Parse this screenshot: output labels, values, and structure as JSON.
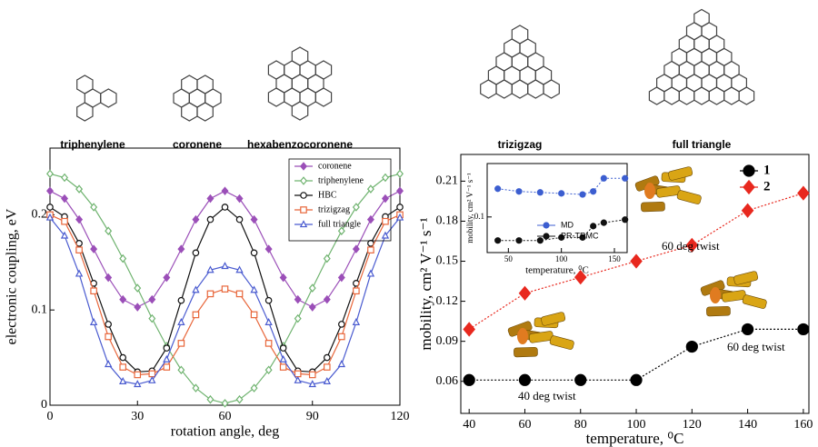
{
  "molecule_labels": [
    "triphenylene",
    "coronene",
    "hexabenzocoronene",
    "trizigzag",
    "full triangle"
  ],
  "chart_data": [
    {
      "type": "line",
      "xlabel": "rotation angle, deg",
      "ylabel": "electronic coupling, eV",
      "x": [
        0,
        5,
        10,
        15,
        20,
        25,
        30,
        35,
        40,
        45,
        50,
        55,
        60,
        65,
        70,
        75,
        80,
        85,
        90,
        95,
        100,
        105,
        110,
        115,
        120
      ],
      "xlim": [
        0,
        120
      ],
      "xticks": [
        0,
        30,
        60,
        90,
        120
      ],
      "ylim": [
        0,
        0.27
      ],
      "yticks": [
        0,
        0.1,
        0.2
      ],
      "legend": "upper right",
      "series": [
        {
          "name": "coronene",
          "color": "#9b4fb8",
          "marker": "diamond",
          "filled": true,
          "values": [
            0.225,
            0.217,
            0.195,
            0.164,
            0.134,
            0.111,
            0.103,
            0.111,
            0.134,
            0.164,
            0.195,
            0.217,
            0.225,
            0.217,
            0.195,
            0.164,
            0.134,
            0.111,
            0.103,
            0.111,
            0.134,
            0.164,
            0.195,
            0.217,
            0.225
          ]
        },
        {
          "name": "triphenylene",
          "color": "#6fb36f",
          "marker": "diamond",
          "filled": false,
          "values": [
            0.243,
            0.239,
            0.227,
            0.208,
            0.183,
            0.154,
            0.123,
            0.091,
            0.062,
            0.037,
            0.018,
            0.006,
            0.002,
            0.006,
            0.018,
            0.037,
            0.062,
            0.091,
            0.123,
            0.154,
            0.183,
            0.208,
            0.227,
            0.239,
            0.243
          ]
        },
        {
          "name": "HBC",
          "color": "#111111",
          "marker": "circle",
          "filled": false,
          "values": [
            0.208,
            0.198,
            0.17,
            0.128,
            0.085,
            0.05,
            0.035,
            0.036,
            0.06,
            0.11,
            0.16,
            0.195,
            0.208,
            0.195,
            0.16,
            0.11,
            0.06,
            0.036,
            0.035,
            0.05,
            0.085,
            0.128,
            0.17,
            0.198,
            0.208
          ]
        },
        {
          "name": "trizigzag",
          "color": "#e8663a",
          "marker": "square",
          "filled": false,
          "values": [
            0.2,
            0.193,
            0.163,
            0.12,
            0.072,
            0.04,
            0.032,
            0.033,
            0.04,
            0.065,
            0.095,
            0.117,
            0.122,
            0.117,
            0.095,
            0.065,
            0.04,
            0.033,
            0.032,
            0.04,
            0.072,
            0.12,
            0.163,
            0.193,
            0.2
          ]
        },
        {
          "name": "full triangle",
          "color": "#4a5bd0",
          "marker": "triangle",
          "filled": false,
          "values": [
            0.197,
            0.178,
            0.138,
            0.087,
            0.043,
            0.025,
            0.022,
            0.026,
            0.048,
            0.087,
            0.121,
            0.142,
            0.146,
            0.142,
            0.121,
            0.087,
            0.048,
            0.026,
            0.022,
            0.025,
            0.043,
            0.087,
            0.138,
            0.178,
            0.197
          ]
        }
      ]
    },
    {
      "type": "line",
      "xlabel": "temperature, ⁰C",
      "ylabel": "mobility, cm² V⁻¹ s⁻¹",
      "x": [
        40,
        60,
        80,
        100,
        120,
        140,
        160
      ],
      "xlim": [
        37,
        162
      ],
      "xticks": [
        40,
        60,
        80,
        100,
        120,
        140,
        160
      ],
      "ylim": [
        0.036,
        0.23
      ],
      "yticks": [
        0.06,
        0.09,
        0.12,
        0.15,
        0.18,
        0.21
      ],
      "legend": "upper right",
      "line_style": "dotted",
      "annotations": [
        "60 deg twist",
        "60 deg twist",
        "40 deg twist"
      ],
      "series": [
        {
          "name": "1",
          "color": "#000000",
          "marker": "circle",
          "filled": true,
          "values": [
            0.061,
            0.061,
            0.061,
            0.061,
            0.086,
            0.099,
            0.099
          ]
        },
        {
          "name": "2",
          "color": "#e8281e",
          "marker": "diamond",
          "filled": true,
          "values": [
            0.099,
            0.126,
            0.138,
            0.15,
            0.162,
            0.188,
            0.201
          ]
        }
      ]
    },
    {
      "type": "line",
      "xlabel": "temperature, ⁰C",
      "ylabel": "mobility, cm² V⁻¹ s⁻¹",
      "x": [
        40,
        60,
        80,
        100,
        120,
        130,
        140,
        160
      ],
      "xlim": [
        30,
        162
      ],
      "xticks": [
        50,
        100,
        150
      ],
      "ylim": [
        0.025,
        0.8
      ],
      "yticks": [
        0.1
      ],
      "log_y": true,
      "legend": "lower center",
      "line_style": "dotted",
      "series": [
        {
          "name": "MD",
          "color": "#3c5ed0",
          "marker": "circle",
          "filled": true,
          "values": [
            0.3,
            0.27,
            0.26,
            0.25,
            0.24,
            0.27,
            0.45,
            0.45
          ]
        },
        {
          "name": "PR-TRMC",
          "color": "#111111",
          "marker": "circle",
          "filled": true,
          "values": [
            0.04,
            0.04,
            0.04,
            0.045,
            0.045,
            0.07,
            0.08,
            0.09
          ]
        }
      ]
    }
  ]
}
